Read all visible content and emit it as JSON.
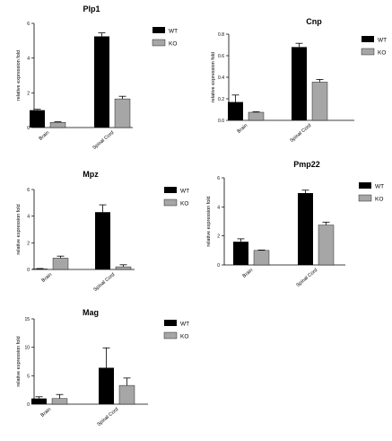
{
  "colors": {
    "wt": "#000000",
    "ko": "#a6a6a6",
    "axis": "#000000"
  },
  "legend": [
    "WT",
    "KO"
  ],
  "chart_data": [
    {
      "type": "bar",
      "title": "Plp1",
      "ylabel": "relative expression fold",
      "categories": [
        "Brain",
        "Spinal Cord"
      ],
      "ylim": [
        0,
        6
      ],
      "yticks": [
        0,
        2,
        4,
        6
      ],
      "series": [
        {
          "name": "WT",
          "values": [
            1.0,
            5.25
          ],
          "errors": [
            0.05,
            0.2
          ]
        },
        {
          "name": "KO",
          "values": [
            0.3,
            1.65
          ],
          "errors": [
            0.03,
            0.15
          ]
        }
      ]
    },
    {
      "type": "bar",
      "title": "Cnp",
      "ylabel": "relative expression fold",
      "categories": [
        "Brain",
        "Spinal Cord"
      ],
      "ylim": [
        0,
        0.8
      ],
      "yticks": [
        0.0,
        0.2,
        0.4,
        0.6,
        0.8
      ],
      "series": [
        {
          "name": "WT",
          "values": [
            0.17,
            0.68
          ],
          "errors": [
            0.065,
            0.035
          ]
        },
        {
          "name": "KO",
          "values": [
            0.075,
            0.355
          ],
          "errors": [
            0.005,
            0.025
          ]
        }
      ]
    },
    {
      "type": "bar",
      "title": "Mpz",
      "ylabel": "relative expression fold",
      "categories": [
        "Brain",
        "Spinal Cord"
      ],
      "ylim": [
        0,
        6
      ],
      "yticks": [
        0,
        2,
        4,
        6
      ],
      "series": [
        {
          "name": "WT",
          "values": [
            0.05,
            4.3
          ],
          "errors": [
            0.02,
            0.55
          ]
        },
        {
          "name": "KO",
          "values": [
            0.85,
            0.2
          ],
          "errors": [
            0.15,
            0.15
          ]
        }
      ]
    },
    {
      "type": "bar",
      "title": "Pmp22",
      "ylabel": "relative expression fold",
      "categories": [
        "Brain",
        "Spinal Cord"
      ],
      "ylim": [
        0,
        6
      ],
      "yticks": [
        0,
        2,
        4,
        6
      ],
      "series": [
        {
          "name": "WT",
          "values": [
            1.6,
            4.95
          ],
          "errors": [
            0.2,
            0.2
          ]
        },
        {
          "name": "KO",
          "values": [
            1.0,
            2.75
          ],
          "errors": [
            0.03,
            0.2
          ]
        }
      ]
    },
    {
      "type": "bar",
      "title": "Mag",
      "ylabel": "relative expression fold",
      "categories": [
        "Brain",
        "Spinal Cord"
      ],
      "ylim": [
        0,
        15
      ],
      "yticks": [
        0,
        5,
        10,
        15
      ],
      "series": [
        {
          "name": "WT",
          "values": [
            1.0,
            6.4
          ],
          "errors": [
            0.3,
            3.5
          ]
        },
        {
          "name": "KO",
          "values": [
            1.0,
            3.3
          ],
          "errors": [
            0.7,
            1.3
          ]
        }
      ]
    }
  ]
}
